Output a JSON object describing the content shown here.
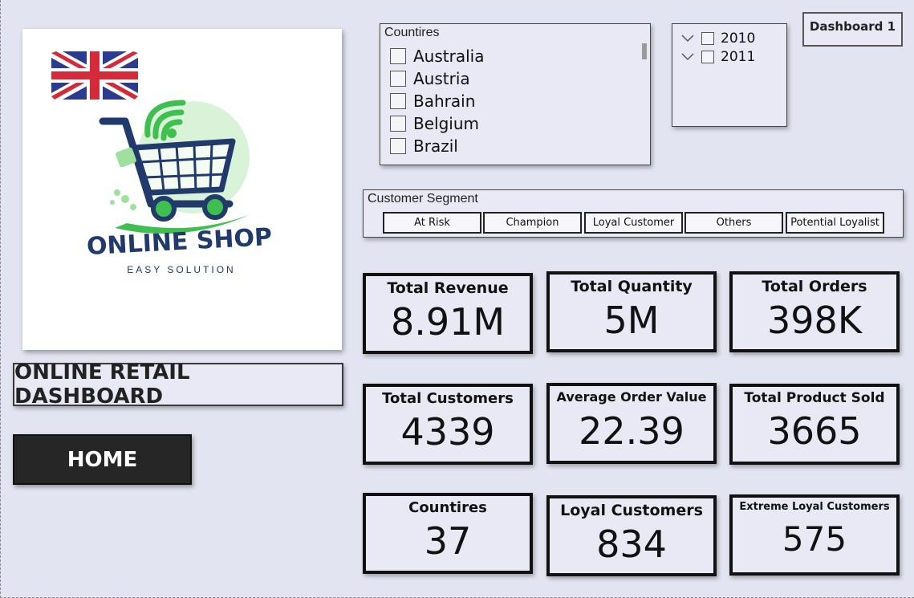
{
  "dashboard": {
    "title": "ONLINE RETAIL DASHBOARD",
    "home_label": "HOME",
    "nav_button_label": "Dashboard 1"
  },
  "logo": {
    "brand_text": "ONLINE SHOP",
    "tagline": "EASY SOLUTION",
    "flag": "uk-flag"
  },
  "country_slicer": {
    "title": "Countires",
    "items": [
      "Australia",
      "Austria",
      "Bahrain",
      "Belgium",
      "Brazil"
    ]
  },
  "year_slicer": {
    "items": [
      "2010",
      "2011"
    ]
  },
  "segment_slicer": {
    "title": "Customer Segment",
    "options": [
      "At Risk",
      "Champion",
      "Loyal Customer",
      "Others",
      "Potential Loyalist"
    ]
  },
  "kpis": {
    "total_revenue": {
      "label": "Total Revenue",
      "value": "8.91M"
    },
    "total_quantity": {
      "label": "Total Quantity",
      "value": "5M"
    },
    "total_orders": {
      "label": "Total Orders",
      "value": "398K"
    },
    "total_customers": {
      "label": "Total Customers",
      "value": "4339"
    },
    "avg_order_value": {
      "label": "Average Order Value",
      "value": "22.39"
    },
    "total_product_sold": {
      "label": "Total Product Sold",
      "value": "3665"
    },
    "countries": {
      "label": "Countires",
      "value": "37"
    },
    "loyal_customers": {
      "label": "Loyal Customers",
      "value": "834"
    },
    "extreme_loyal": {
      "label": "Extreme Loyal Customers",
      "value": "575"
    }
  },
  "colors": {
    "background": "#e2e4f1",
    "card_background": "#e8e9f4",
    "home_button": "#262626",
    "logo_navy": "#1f3a6b",
    "logo_green": "#3fbf4f"
  }
}
